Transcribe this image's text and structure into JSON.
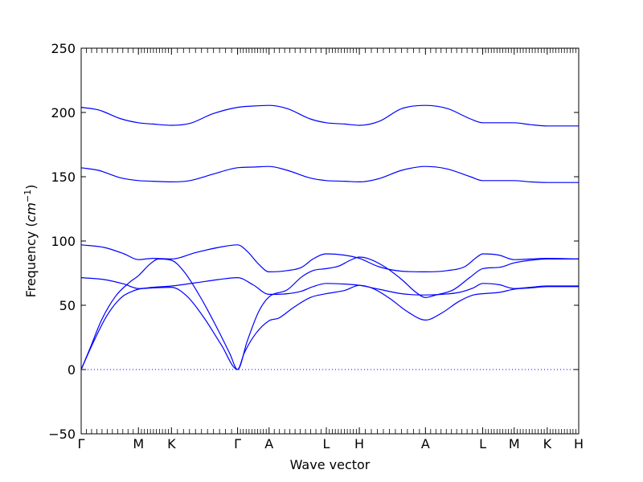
{
  "chart_data": {
    "type": "line",
    "title": "",
    "xlabel": "Wave vector",
    "ylabel": "Frequency",
    "ylabel_unit": "cm",
    "ylabel_unit_exponent": "−1",
    "ylim": [
      -50,
      250
    ],
    "yticks": [
      -50,
      0,
      50,
      100,
      150,
      200,
      250
    ],
    "grid": false,
    "zero_line": {
      "y": 0,
      "style": "dotted"
    },
    "line_color": "#0000ff",
    "x_segments": [
      {
        "from": "Γ",
        "to": "M",
        "start": 0.0,
        "end": 1.0
      },
      {
        "from": "M",
        "to": "K",
        "start": 1.0,
        "end": 1.577
      },
      {
        "from": "K",
        "to": "Γ",
        "start": 1.577,
        "end": 2.732
      },
      {
        "from": "Γ",
        "to": "A",
        "start": 2.732,
        "end": 3.282
      },
      {
        "from": "A",
        "to": "L",
        "start": 3.282,
        "end": 4.282
      },
      {
        "from": "L",
        "to": "H",
        "start": 4.282,
        "end": 4.859
      },
      {
        "from": "H",
        "to": "A",
        "start": 4.859,
        "end": 6.014
      },
      {
        "from": "A",
        "to": "L",
        "start": 6.014,
        "end": 7.014
      },
      {
        "from": "L",
        "to": "M",
        "start": 7.014,
        "end": 7.564
      },
      {
        "from": "M",
        "to": "K",
        "start": 7.564,
        "end": 8.141
      },
      {
        "from": "K",
        "to": "H",
        "start": 8.141,
        "end": 8.691
      }
    ],
    "xticks": [
      {
        "label": "Γ",
        "x": 0.0
      },
      {
        "label": "M",
        "x": 1.0
      },
      {
        "label": "K",
        "x": 1.577
      },
      {
        "label": "Γ",
        "x": 2.732
      },
      {
        "label": "A",
        "x": 3.282
      },
      {
        "label": "L",
        "x": 4.282
      },
      {
        "label": "H",
        "x": 4.859
      },
      {
        "label": "A",
        "x": 6.014
      },
      {
        "label": "L",
        "x": 7.014
      },
      {
        "label": "M",
        "x": 7.564
      },
      {
        "label": "K",
        "x": 8.141
      },
      {
        "label": "H",
        "x": 8.691
      }
    ],
    "series": [
      {
        "values": [
          [
            0,
            204
          ],
          [
            0.3,
            202
          ],
          [
            0.7,
            195
          ],
          [
            1.0,
            192
          ],
          [
            1.25,
            191
          ],
          [
            1.577,
            190
          ],
          [
            1.9,
            191.5
          ],
          [
            2.3,
            199
          ],
          [
            2.732,
            204
          ],
          [
            3.0,
            205
          ],
          [
            3.282,
            205.5
          ],
          [
            3.6,
            203
          ],
          [
            4.0,
            195
          ],
          [
            4.282,
            192
          ],
          [
            4.6,
            191
          ],
          [
            4.859,
            190
          ],
          [
            5.2,
            193
          ],
          [
            5.6,
            203
          ],
          [
            6.014,
            205.5
          ],
          [
            6.4,
            203
          ],
          [
            6.8,
            195
          ],
          [
            7.014,
            192
          ],
          [
            7.564,
            192
          ],
          [
            7.85,
            190.5
          ],
          [
            8.141,
            189.5
          ],
          [
            8.691,
            189.5
          ]
        ]
      },
      {
        "values": [
          [
            0,
            157
          ],
          [
            0.3,
            155
          ],
          [
            0.7,
            149
          ],
          [
            1.0,
            147
          ],
          [
            1.25,
            146.5
          ],
          [
            1.577,
            146
          ],
          [
            1.9,
            147
          ],
          [
            2.3,
            152
          ],
          [
            2.732,
            157
          ],
          [
            3.0,
            157.5
          ],
          [
            3.282,
            158
          ],
          [
            3.6,
            155
          ],
          [
            4.0,
            149
          ],
          [
            4.282,
            147
          ],
          [
            4.6,
            146.5
          ],
          [
            4.859,
            146
          ],
          [
            5.2,
            148.5
          ],
          [
            5.6,
            155
          ],
          [
            6.014,
            158
          ],
          [
            6.4,
            156
          ],
          [
            6.8,
            150
          ],
          [
            7.014,
            147
          ],
          [
            7.564,
            147
          ],
          [
            7.85,
            146
          ],
          [
            8.141,
            145.5
          ],
          [
            8.691,
            145.5
          ]
        ]
      },
      {
        "values": [
          [
            0,
            97
          ],
          [
            0.4,
            95
          ],
          [
            0.75,
            90
          ],
          [
            1.0,
            85.5
          ],
          [
            1.25,
            86.5
          ],
          [
            1.577,
            86
          ],
          [
            2.0,
            91
          ],
          [
            2.4,
            95
          ],
          [
            2.732,
            97
          ],
          [
            2.9,
            92
          ],
          [
            3.1,
            82
          ],
          [
            3.282,
            76
          ],
          [
            3.6,
            77
          ],
          [
            3.85,
            79.5
          ],
          [
            4.05,
            86
          ],
          [
            4.282,
            90
          ],
          [
            4.6,
            89
          ],
          [
            4.859,
            86.5
          ],
          [
            5.2,
            80
          ],
          [
            5.6,
            76.5
          ],
          [
            6.014,
            76
          ],
          [
            6.4,
            77
          ],
          [
            6.7,
            80
          ],
          [
            6.9,
            87
          ],
          [
            7.014,
            90
          ],
          [
            7.3,
            89
          ],
          [
            7.564,
            85.5
          ],
          [
            7.85,
            86
          ],
          [
            8.141,
            86.5
          ],
          [
            8.691,
            86
          ]
        ]
      },
      {
        "values": [
          [
            0,
            71.5
          ],
          [
            0.4,
            70
          ],
          [
            0.75,
            66.5
          ],
          [
            1.0,
            63
          ],
          [
            1.25,
            64
          ],
          [
            1.577,
            65
          ],
          [
            2.0,
            67.5
          ],
          [
            2.4,
            70
          ],
          [
            2.732,
            71.5
          ],
          [
            3.0,
            66
          ],
          [
            3.282,
            58.5
          ],
          [
            3.6,
            59
          ],
          [
            3.85,
            61
          ],
          [
            4.05,
            64.5
          ],
          [
            4.282,
            67
          ],
          [
            4.6,
            66.5
          ],
          [
            4.859,
            65.5
          ],
          [
            5.2,
            62.5
          ],
          [
            5.6,
            59
          ],
          [
            6.014,
            58
          ],
          [
            6.3,
            58.5
          ],
          [
            6.6,
            60
          ],
          [
            6.85,
            63.5
          ],
          [
            7.014,
            67
          ],
          [
            7.3,
            66
          ],
          [
            7.564,
            63
          ],
          [
            7.85,
            64
          ],
          [
            8.141,
            65
          ],
          [
            8.691,
            65
          ]
        ]
      },
      {
        "values": [
          [
            0,
            0
          ],
          [
            0.15,
            16
          ],
          [
            0.35,
            38
          ],
          [
            0.6,
            57
          ],
          [
            0.85,
            68
          ],
          [
            1.0,
            73
          ],
          [
            1.2,
            82
          ],
          [
            1.35,
            86
          ],
          [
            1.577,
            85
          ],
          [
            1.8,
            76
          ],
          [
            2.1,
            55
          ],
          [
            2.4,
            30
          ],
          [
            2.6,
            12
          ],
          [
            2.732,
            0
          ],
          [
            2.9,
            22
          ],
          [
            3.1,
            45
          ],
          [
            3.282,
            56.5
          ],
          [
            3.6,
            62
          ],
          [
            3.85,
            72
          ],
          [
            4.05,
            77
          ],
          [
            4.282,
            78.5
          ],
          [
            4.5,
            80.5
          ],
          [
            4.7,
            85
          ],
          [
            4.859,
            87.5
          ],
          [
            5.0,
            86.5
          ],
          [
            5.3,
            80
          ],
          [
            5.6,
            70
          ],
          [
            5.85,
            60
          ],
          [
            6.014,
            56
          ],
          [
            6.2,
            58
          ],
          [
            6.5,
            62
          ],
          [
            6.8,
            72
          ],
          [
            7.014,
            78.5
          ],
          [
            7.3,
            79.5
          ],
          [
            7.564,
            83
          ],
          [
            7.85,
            85
          ],
          [
            8.141,
            86
          ],
          [
            8.691,
            86
          ]
        ]
      },
      {
        "values": [
          [
            0,
            0
          ],
          [
            0.2,
            20
          ],
          [
            0.45,
            42
          ],
          [
            0.7,
            56
          ],
          [
            0.9,
            61
          ],
          [
            1.0,
            62.5
          ],
          [
            1.25,
            63.5
          ],
          [
            1.577,
            64
          ],
          [
            1.85,
            57
          ],
          [
            2.15,
            40
          ],
          [
            2.45,
            19
          ],
          [
            2.732,
            0
          ],
          [
            2.85,
            13
          ],
          [
            3.05,
            28
          ],
          [
            3.282,
            38
          ],
          [
            3.45,
            40
          ],
          [
            3.7,
            48
          ],
          [
            4.0,
            56
          ],
          [
            4.282,
            59
          ],
          [
            4.6,
            61.5
          ],
          [
            4.859,
            65.5
          ],
          [
            5.1,
            63
          ],
          [
            5.4,
            55
          ],
          [
            5.7,
            45
          ],
          [
            6.014,
            38.5
          ],
          [
            6.3,
            44
          ],
          [
            6.6,
            53
          ],
          [
            6.85,
            58
          ],
          [
            7.014,
            59
          ],
          [
            7.3,
            60
          ],
          [
            7.564,
            62.5
          ],
          [
            7.85,
            63.5
          ],
          [
            8.141,
            64.5
          ],
          [
            8.691,
            64.5
          ]
        ]
      }
    ]
  }
}
